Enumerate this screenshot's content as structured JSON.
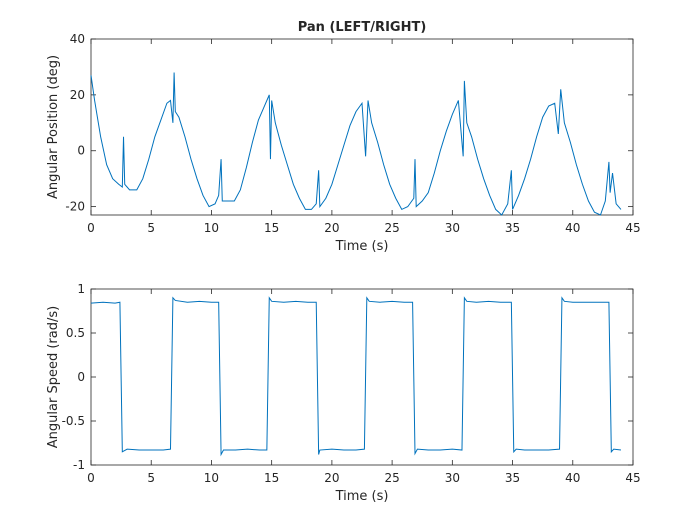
{
  "chart_data": [
    {
      "type": "line",
      "title": "Pan (LEFT/RIGHT)",
      "xlabel": "Time (s)",
      "ylabel": "Angular Position (deg)",
      "xlim": [
        0,
        45
      ],
      "xticks": [
        0,
        5,
        10,
        15,
        20,
        25,
        30,
        35,
        40,
        45
      ],
      "ylim": [
        -23,
        40
      ],
      "yticks": [
        -20,
        0,
        20,
        40
      ],
      "x": [
        0,
        0.3,
        0.8,
        1.3,
        1.8,
        2.3,
        2.6,
        2.7,
        2.8,
        3.2,
        3.8,
        4.3,
        4.8,
        5.3,
        5.8,
        6.3,
        6.6,
        6.8,
        6.9,
        7.0,
        7.3,
        7.8,
        8.3,
        8.8,
        9.3,
        9.8,
        10.3,
        10.6,
        10.8,
        10.9,
        11.4,
        11.9,
        12.4,
        12.9,
        13.4,
        13.9,
        14.4,
        14.8,
        14.9,
        15.0,
        15.3,
        15.8,
        16.3,
        16.8,
        17.3,
        17.8,
        18.3,
        18.7,
        18.9,
        19.0,
        19.5,
        20.0,
        20.5,
        21.0,
        21.5,
        22.0,
        22.5,
        22.8,
        23.0,
        23.3,
        23.8,
        24.3,
        24.8,
        25.3,
        25.8,
        26.3,
        26.8,
        26.9,
        27.0,
        27.5,
        28.0,
        28.5,
        29.0,
        29.5,
        30.0,
        30.5,
        30.9,
        31.0,
        31.2,
        31.6,
        32.1,
        32.6,
        33.1,
        33.6,
        34.1,
        34.6,
        34.9,
        35.0,
        35.5,
        36.0,
        36.5,
        37.0,
        37.5,
        38.0,
        38.5,
        38.8,
        39.0,
        39.3,
        39.8,
        40.3,
        40.8,
        41.3,
        41.8,
        42.3,
        42.7,
        43.0,
        43.1,
        43.3,
        43.6,
        44.0
      ],
      "series": [
        {
          "name": "Position",
          "color": "#0072bd",
          "values": [
            27,
            18,
            5,
            -5,
            -10,
            -12,
            -13,
            5,
            -12,
            -14,
            -14,
            -10,
            -3,
            5,
            11,
            17,
            18,
            10,
            28,
            14,
            12,
            5,
            -3,
            -10,
            -16,
            -20,
            -19,
            -16,
            -3,
            -18,
            -18,
            -18,
            -14,
            -6,
            3,
            11,
            16,
            20,
            -3,
            18,
            10,
            2,
            -5,
            -12,
            -17,
            -21,
            -21,
            -19,
            -7,
            -20,
            -17,
            -12,
            -5,
            2,
            9,
            14,
            17,
            -2,
            18,
            10,
            3,
            -5,
            -12,
            -17,
            -21,
            -20,
            -17,
            -3,
            -20,
            -18,
            -15,
            -8,
            0,
            7,
            13,
            18,
            -2,
            25,
            10,
            5,
            -3,
            -10,
            -16,
            -21,
            -23,
            -19,
            -7,
            -21,
            -16,
            -10,
            -3,
            5,
            12,
            16,
            17,
            6,
            22,
            10,
            3,
            -5,
            -12,
            -18,
            -22,
            -23,
            -18,
            -4,
            -15,
            -8,
            -19,
            -21
          ]
        }
      ]
    },
    {
      "type": "line",
      "xlabel": "Time (s)",
      "ylabel": "Angular Speed (rad/s)",
      "xlim": [
        0,
        45
      ],
      "xticks": [
        0,
        5,
        10,
        15,
        20,
        25,
        30,
        35,
        40,
        45
      ],
      "ylim": [
        -1,
        1
      ],
      "yticks": [
        -1,
        -0.5,
        0,
        0.5,
        1
      ],
      "x": [
        0,
        1,
        2,
        2.4,
        2.6,
        3,
        4,
        5,
        6,
        6.6,
        6.8,
        7,
        8,
        9,
        10,
        10.6,
        10.8,
        11,
        12,
        13,
        14,
        14.6,
        14.8,
        15,
        16,
        17,
        18,
        18.7,
        18.9,
        19,
        20,
        21,
        22,
        22.7,
        22.9,
        23.1,
        24,
        25,
        26,
        26.7,
        26.9,
        27.1,
        28,
        29,
        30,
        30.8,
        31,
        31.2,
        32,
        33,
        34,
        34.9,
        35.1,
        35.3,
        36,
        37,
        38,
        38.9,
        39.1,
        39.3,
        40,
        41,
        42,
        43,
        43.2,
        43.4,
        44
      ],
      "series": [
        {
          "name": "Speed",
          "color": "#0072bd",
          "values": [
            0.84,
            0.85,
            0.84,
            0.85,
            -0.85,
            -0.82,
            -0.83,
            -0.83,
            -0.83,
            -0.82,
            0.9,
            0.87,
            0.85,
            0.86,
            0.85,
            0.85,
            -0.88,
            -0.83,
            -0.83,
            -0.82,
            -0.83,
            -0.83,
            0.9,
            0.86,
            0.85,
            0.86,
            0.85,
            0.85,
            -0.88,
            -0.83,
            -0.82,
            -0.83,
            -0.83,
            -0.82,
            0.9,
            0.86,
            0.85,
            0.86,
            0.85,
            0.85,
            -0.87,
            -0.82,
            -0.83,
            -0.83,
            -0.82,
            -0.83,
            0.9,
            0.86,
            0.85,
            0.86,
            0.85,
            0.85,
            -0.85,
            -0.82,
            -0.83,
            -0.83,
            -0.83,
            -0.82,
            0.9,
            0.86,
            0.85,
            0.85,
            0.85,
            0.85,
            -0.85,
            -0.82,
            -0.83
          ]
        }
      ]
    }
  ]
}
